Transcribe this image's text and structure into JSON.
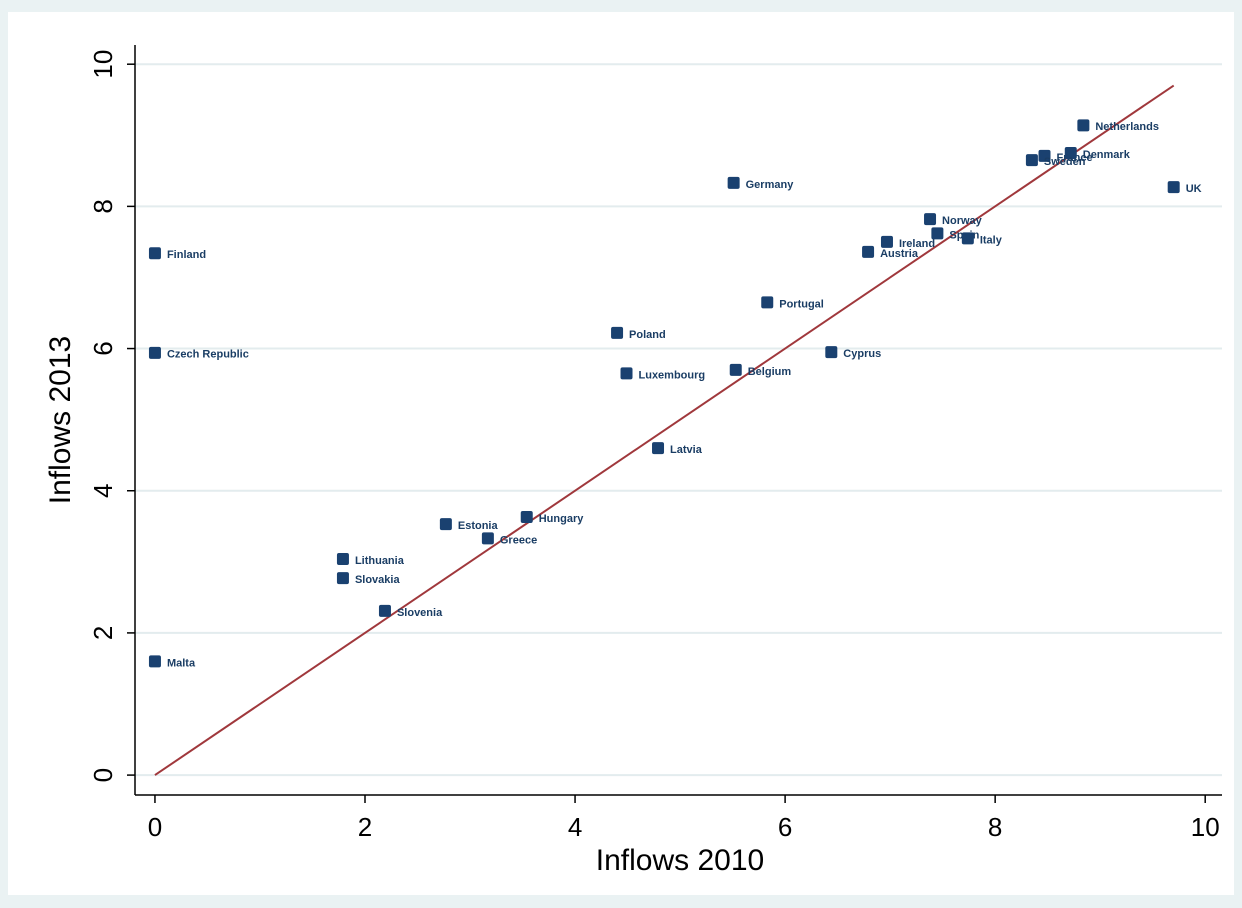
{
  "chart_data": {
    "type": "scatter",
    "x_label": "Inflows 2010",
    "y_label": "Inflows 2013",
    "labels": [
      "Netherlands",
      "France",
      "Denmark",
      "Sweden",
      "UK",
      "Germany",
      "Norway",
      "Spain",
      "Italy",
      "Ireland",
      "Austria",
      "Finland",
      "Portugal",
      "Poland",
      "Czech Republic",
      "Cyprus",
      "Luxembourg",
      "Belgium",
      "Latvia",
      "Hungary",
      "Estonia",
      "Greece",
      "Lithuania",
      "Slovakia",
      "Slovenia",
      "Malta"
    ],
    "x": [
      8.84,
      8.47,
      8.72,
      8.35,
      9.7,
      5.51,
      7.38,
      7.45,
      7.74,
      6.97,
      6.79,
      0,
      5.83,
      4.4,
      0,
      6.44,
      4.49,
      5.53,
      4.79,
      3.54,
      2.77,
      3.17,
      1.79,
      1.79,
      2.19,
      0
    ],
    "y": [
      9.14,
      8.71,
      8.75,
      8.65,
      8.27,
      8.33,
      7.82,
      7.62,
      7.55,
      7.5,
      7.36,
      7.34,
      6.65,
      6.22,
      5.94,
      5.95,
      5.65,
      5.7,
      4.6,
      3.63,
      3.53,
      3.33,
      3.04,
      2.77,
      2.31,
      1.6
    ],
    "color": "#1a4170",
    "fit_line": {
      "x": [
        0,
        9.7
      ],
      "y": [
        0,
        9.7
      ],
      "color": "#a0383c"
    },
    "xlim": [
      -0.19,
      10.16
    ],
    "ylim": [
      -0.28,
      10.27
    ],
    "xticks": [
      0,
      2,
      4,
      6,
      8,
      10
    ],
    "yticks": [
      0,
      2,
      4,
      6,
      8,
      10
    ],
    "grid": true
  }
}
